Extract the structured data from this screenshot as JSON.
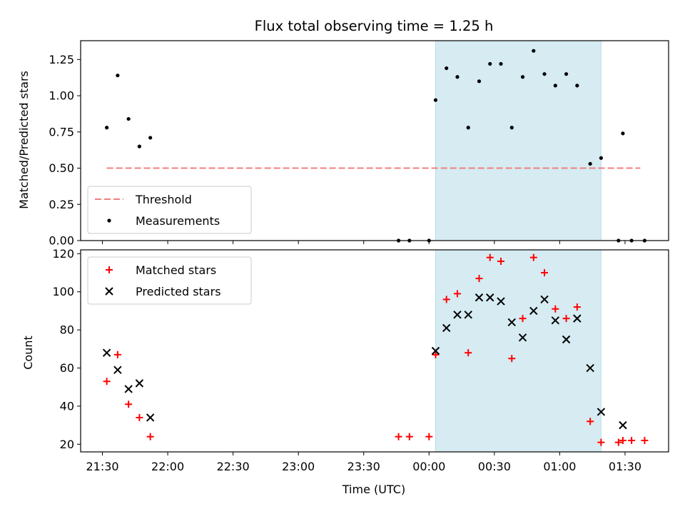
{
  "chart_data": [
    {
      "type": "scatter",
      "title": "Flux total observing time = 1.25 h",
      "xlabel": "",
      "ylabel": "Matched/Predicted stars",
      "xlim": [
        "21:20",
        "01:50"
      ],
      "ylim": [
        0,
        1.38
      ],
      "yticks": [
        "0.00",
        "0.25",
        "0.50",
        "0.75",
        "1.00",
        "1.25"
      ],
      "xticks": [
        "21:30",
        "22:00",
        "22:30",
        "23:00",
        "23:30",
        "00:00",
        "00:30",
        "01:00",
        "01:30"
      ],
      "grid": false,
      "legend_position": "lower-left",
      "highlight_span": {
        "start": "00:03",
        "end": "01:19",
        "color": "#add8e6"
      },
      "threshold": {
        "name": "Threshold",
        "value": 0.5,
        "x_start": "21:32",
        "x_end": "01:37",
        "color": "#f08080"
      },
      "series": [
        {
          "name": "Measurements",
          "color": "#000000",
          "marker": "dot",
          "points": [
            [
              "21:32",
              0.78
            ],
            [
              "21:37",
              1.14
            ],
            [
              "21:42",
              0.84
            ],
            [
              "21:47",
              0.65
            ],
            [
              "21:52",
              0.71
            ],
            [
              "23:46",
              0.0
            ],
            [
              "23:51",
              0.0
            ],
            [
              "00:00",
              0.0
            ],
            [
              "00:03",
              0.97
            ],
            [
              "00:08",
              1.19
            ],
            [
              "00:13",
              1.13
            ],
            [
              "00:18",
              0.78
            ],
            [
              "00:23",
              1.1
            ],
            [
              "00:28",
              1.22
            ],
            [
              "00:33",
              1.22
            ],
            [
              "00:38",
              0.78
            ],
            [
              "00:43",
              1.13
            ],
            [
              "00:48",
              1.31
            ],
            [
              "00:53",
              1.15
            ],
            [
              "00:58",
              1.07
            ],
            [
              "01:03",
              1.15
            ],
            [
              "01:08",
              1.07
            ],
            [
              "01:14",
              0.53
            ],
            [
              "01:19",
              0.57
            ],
            [
              "01:27",
              0.0
            ],
            [
              "01:29",
              0.74
            ],
            [
              "01:33",
              0.0
            ],
            [
              "01:39",
              0.0
            ]
          ]
        }
      ]
    },
    {
      "type": "scatter",
      "title": "",
      "xlabel": "Time (UTC)",
      "ylabel": "Count",
      "xlim": [
        "21:20",
        "01:50"
      ],
      "ylim": [
        16,
        122
      ],
      "yticks": [
        "20",
        "40",
        "60",
        "80",
        "100",
        "120"
      ],
      "xticks": [
        "21:30",
        "22:00",
        "22:30",
        "23:00",
        "23:30",
        "00:00",
        "00:30",
        "01:00",
        "01:30"
      ],
      "grid": false,
      "legend_position": "upper-left",
      "highlight_span": {
        "start": "00:03",
        "end": "01:19",
        "color": "#add8e6"
      },
      "series": [
        {
          "name": "Matched stars",
          "color": "#ff0000",
          "marker": "plus",
          "points": [
            [
              "21:32",
              53
            ],
            [
              "21:37",
              67
            ],
            [
              "21:42",
              41
            ],
            [
              "21:47",
              34
            ],
            [
              "21:52",
              24
            ],
            [
              "23:46",
              24
            ],
            [
              "23:51",
              24
            ],
            [
              "00:00",
              24
            ],
            [
              "00:03",
              67
            ],
            [
              "00:08",
              96
            ],
            [
              "00:13",
              99
            ],
            [
              "00:18",
              68
            ],
            [
              "00:23",
              107
            ],
            [
              "00:28",
              118
            ],
            [
              "00:33",
              116
            ],
            [
              "00:38",
              65
            ],
            [
              "00:43",
              86
            ],
            [
              "00:48",
              118
            ],
            [
              "00:53",
              110
            ],
            [
              "00:58",
              91
            ],
            [
              "01:03",
              86
            ],
            [
              "01:08",
              92
            ],
            [
              "01:14",
              32
            ],
            [
              "01:19",
              21
            ],
            [
              "01:27",
              21
            ],
            [
              "01:29",
              22
            ],
            [
              "01:33",
              22
            ],
            [
              "01:39",
              22
            ]
          ]
        },
        {
          "name": "Predicted stars",
          "color": "#000000",
          "marker": "x",
          "points": [
            [
              "21:32",
              68
            ],
            [
              "21:37",
              59
            ],
            [
              "21:42",
              49
            ],
            [
              "21:47",
              52
            ],
            [
              "21:52",
              34
            ],
            [
              "00:03",
              69
            ],
            [
              "00:08",
              81
            ],
            [
              "00:13",
              88
            ],
            [
              "00:18",
              88
            ],
            [
              "00:23",
              97
            ],
            [
              "00:28",
              97
            ],
            [
              "00:33",
              95
            ],
            [
              "00:38",
              84
            ],
            [
              "00:43",
              76
            ],
            [
              "00:48",
              90
            ],
            [
              "00:53",
              96
            ],
            [
              "00:58",
              85
            ],
            [
              "01:03",
              75
            ],
            [
              "01:08",
              86
            ],
            [
              "01:14",
              60
            ],
            [
              "01:19",
              37
            ],
            [
              "01:29",
              30
            ]
          ]
        }
      ]
    }
  ]
}
